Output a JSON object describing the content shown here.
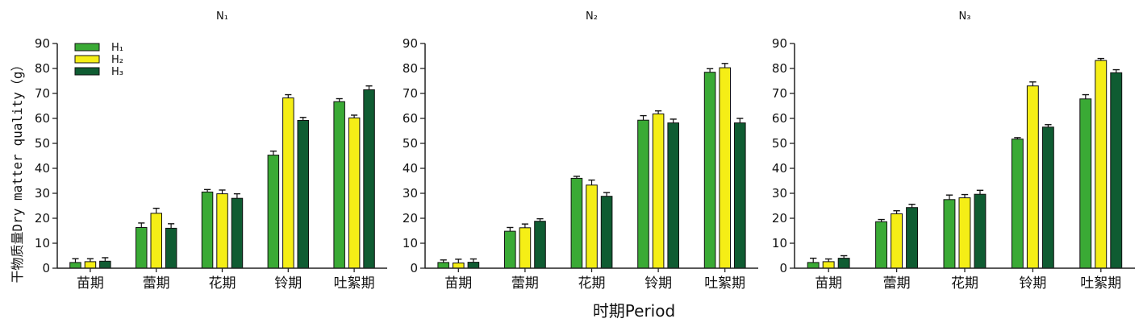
{
  "figure": {
    "xlabel": "时期Period",
    "ylabel": "干物质量Dry matter quality（g）"
  },
  "legend": [
    {
      "name": "H₁",
      "color": "#3aaa35"
    },
    {
      "name": "H₂",
      "color": "#f5ee16"
    },
    {
      "name": "H₃",
      "color": "#0f5c32"
    }
  ],
  "chart_data": [
    {
      "type": "bar",
      "title": "N₁",
      "categories": [
        "苗期",
        "蕾期",
        "花期",
        "铃期",
        "吐絮期"
      ],
      "ylim": [
        0,
        90
      ],
      "yticks": [
        0,
        10,
        20,
        30,
        40,
        50,
        60,
        70,
        80,
        90
      ],
      "series": [
        {
          "name": "H₁",
          "values": [
            2.3,
            16.3,
            30.5,
            45.3,
            66.7
          ],
          "errors": [
            1.5,
            1.8,
            1.0,
            1.6,
            1.2
          ]
        },
        {
          "name": "H₂",
          "values": [
            2.6,
            22.0,
            29.8,
            68.2,
            60.2
          ],
          "errors": [
            1.2,
            2.0,
            1.5,
            1.3,
            1.1
          ]
        },
        {
          "name": "H₃",
          "values": [
            2.8,
            16.0,
            28.0,
            59.2,
            71.5
          ],
          "errors": [
            1.4,
            1.8,
            1.8,
            1.2,
            1.5
          ]
        }
      ]
    },
    {
      "type": "bar",
      "title": "N₂",
      "categories": [
        "苗期",
        "蕾期",
        "花期",
        "铃期",
        "吐絮期"
      ],
      "ylim": [
        0,
        90
      ],
      "yticks": [
        0,
        10,
        20,
        30,
        40,
        50,
        60,
        70,
        80,
        90
      ],
      "series": [
        {
          "name": "H₁",
          "values": [
            2.3,
            14.8,
            36.0,
            59.3,
            78.5
          ],
          "errors": [
            1.0,
            1.5,
            0.8,
            1.8,
            1.4
          ]
        },
        {
          "name": "H₂",
          "values": [
            2.1,
            16.2,
            33.3,
            61.8,
            80.3
          ],
          "errors": [
            1.5,
            1.5,
            2.0,
            1.2,
            1.7
          ]
        },
        {
          "name": "H₃",
          "values": [
            2.4,
            18.8,
            28.8,
            58.2,
            58.2
          ],
          "errors": [
            1.3,
            1.0,
            1.5,
            1.5,
            1.8
          ]
        }
      ]
    },
    {
      "type": "bar",
      "title": "N₃",
      "categories": [
        "苗期",
        "蕾期",
        "花期",
        "铃期",
        "吐絮期"
      ],
      "ylim": [
        0,
        90
      ],
      "yticks": [
        0,
        10,
        20,
        30,
        40,
        50,
        60,
        70,
        80,
        90
      ],
      "series": [
        {
          "name": "H₁",
          "values": [
            2.3,
            18.6,
            27.5,
            51.7,
            67.8
          ],
          "errors": [
            1.7,
            0.9,
            1.8,
            0.6,
            1.7
          ]
        },
        {
          "name": "H₂",
          "values": [
            2.6,
            21.8,
            28.2,
            73.0,
            83.2
          ],
          "errors": [
            1.1,
            1.2,
            1.3,
            1.6,
            0.8
          ]
        },
        {
          "name": "H₃",
          "values": [
            4.0,
            24.3,
            29.6,
            56.5,
            78.3
          ],
          "errors": [
            1.0,
            1.3,
            1.6,
            1.0,
            1.2
          ]
        }
      ]
    }
  ]
}
